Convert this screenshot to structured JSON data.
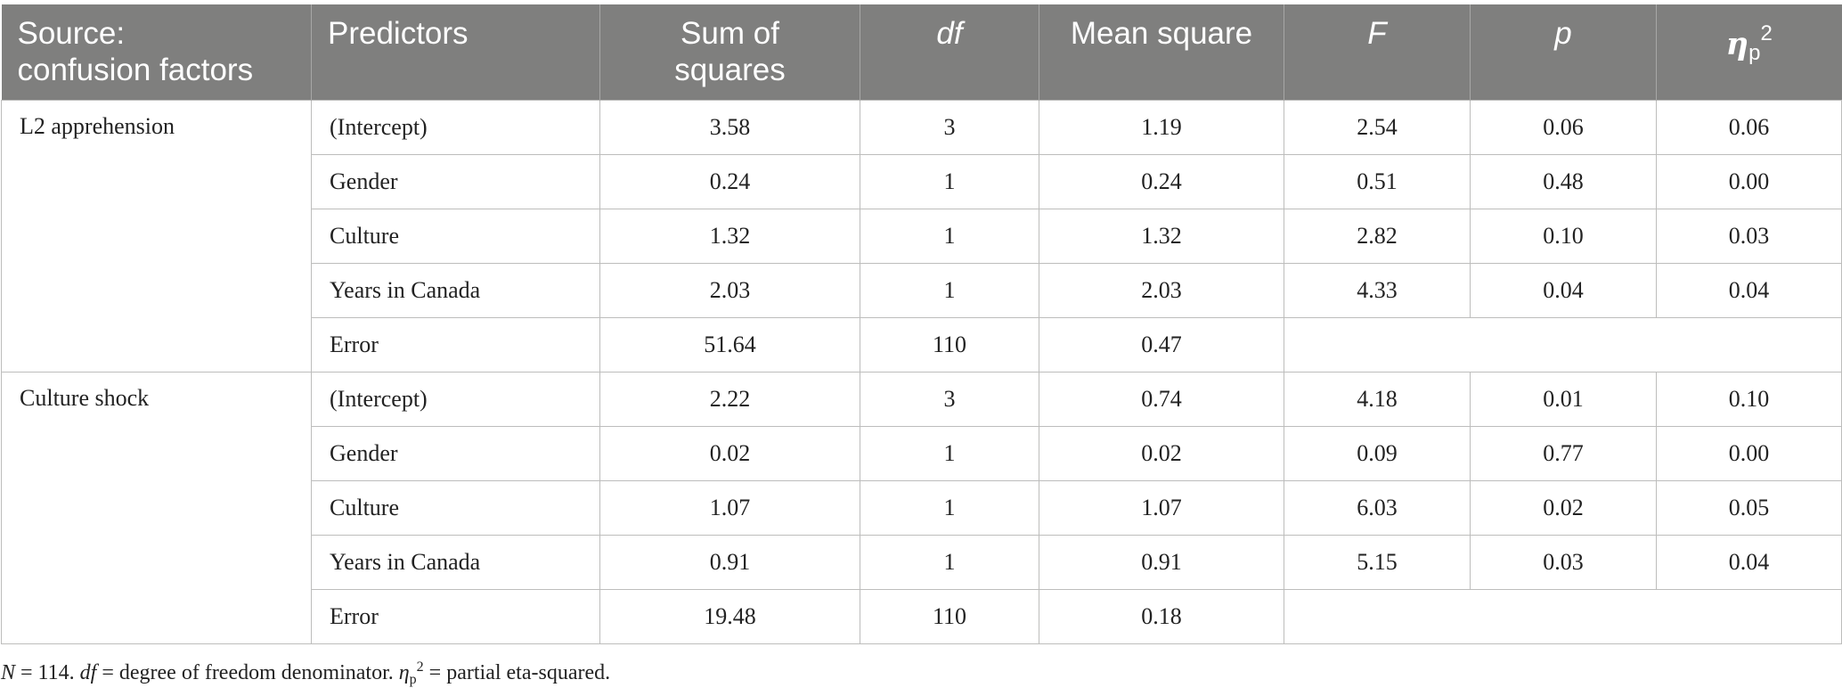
{
  "header": {
    "source_line1": "Source:",
    "source_line2": "confusion factors",
    "predictors": "Predictors",
    "sum_line1": "Sum of",
    "sum_line2": "squares",
    "df": "df",
    "mean_square": "Mean square",
    "f": "F",
    "p": "p",
    "eta_symbol": "η",
    "eta_sub": "p",
    "eta_sup": "2"
  },
  "groups": [
    {
      "source": "L2 apprehension",
      "rows": [
        {
          "predictor": "(Intercept)",
          "ss": "3.58",
          "df": "3",
          "ms": "1.19",
          "f": "2.54",
          "p": "0.06",
          "eta": "0.06"
        },
        {
          "predictor": "Gender",
          "ss": "0.24",
          "df": "1",
          "ms": "0.24",
          "f": "0.51",
          "p": "0.48",
          "eta": "0.00"
        },
        {
          "predictor": "Culture",
          "ss": "1.32",
          "df": "1",
          "ms": "1.32",
          "f": "2.82",
          "p": "0.10",
          "eta": "0.03"
        },
        {
          "predictor": "Years in Canada",
          "ss": "2.03",
          "df": "1",
          "ms": "2.03",
          "f": "4.33",
          "p": "0.04",
          "eta": "0.04"
        },
        {
          "predictor": "Error",
          "ss": "51.64",
          "df": "110",
          "ms": "0.47"
        }
      ]
    },
    {
      "source": "Culture shock",
      "rows": [
        {
          "predictor": "(Intercept)",
          "ss": "2.22",
          "df": "3",
          "ms": "0.74",
          "f": "4.18",
          "p": "0.01",
          "eta": "0.10"
        },
        {
          "predictor": "Gender",
          "ss": "0.02",
          "df": "1",
          "ms": "0.02",
          "f": "0.09",
          "p": "0.77",
          "eta": "0.00"
        },
        {
          "predictor": "Culture",
          "ss": "1.07",
          "df": "1",
          "ms": "1.07",
          "f": "6.03",
          "p": "0.02",
          "eta": "0.05"
        },
        {
          "predictor": "Years in Canada",
          "ss": "0.91",
          "df": "1",
          "ms": "0.91",
          "f": "5.15",
          "p": "0.03",
          "eta": "0.04"
        },
        {
          "predictor": "Error",
          "ss": "19.48",
          "df": "110",
          "ms": "0.18"
        }
      ]
    }
  ],
  "footnote": {
    "n_var": "N",
    "n_rest": " = 114. ",
    "df_var": "df",
    "df_rest": " = degree of freedom denominator. ",
    "eta_symbol": "η",
    "eta_sub": "p",
    "eta_sup": "2",
    "eta_rest": " = partial eta-squared."
  }
}
